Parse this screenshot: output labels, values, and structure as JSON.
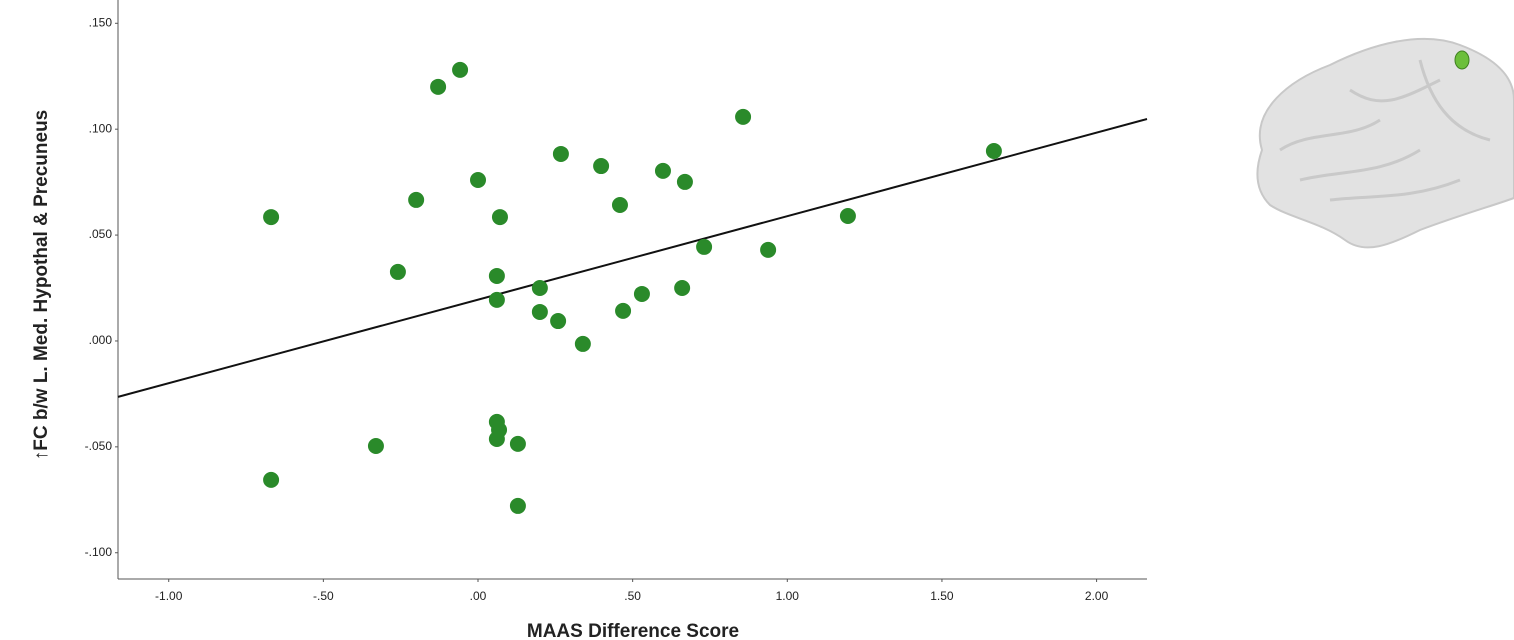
{
  "chart_data": {
    "type": "scatter",
    "x_label": "MAAS Difference Score",
    "y_label": "↑FC b/w L. Med. Hypothal & Precuneus",
    "color": "#2a8a2a",
    "label_color": "#3b8c2c",
    "x": [
      -0.669,
      -0.129,
      -0.058,
      -0.2,
      0.0,
      0.071,
      -0.259,
      0.061,
      0.061,
      0.2,
      0.2,
      0.259,
      0.339,
      0.268,
      0.398,
      0.459,
      0.469,
      0.53,
      0.598,
      0.669,
      0.66,
      0.731,
      0.857,
      0.938,
      1.196,
      1.668,
      -0.669,
      -0.33,
      0.061,
      0.068,
      0.061,
      0.129,
      0.129
    ],
    "values": [
      0.0585,
      0.12,
      0.128,
      0.0666,
      0.076,
      0.0585,
      0.0326,
      0.0307,
      0.0194,
      0.025,
      0.0137,
      0.0094,
      -0.0014,
      0.0883,
      0.0826,
      0.0642,
      0.0142,
      0.0222,
      0.0803,
      0.0751,
      0.025,
      0.0444,
      0.1058,
      0.043,
      0.059,
      0.0897,
      -0.0656,
      -0.0496,
      -0.0382,
      -0.042,
      -0.0463,
      -0.0486,
      -0.0779
    ],
    "fit_line": {
      "x": [
        -1.164,
        2.163
      ],
      "y": [
        -0.0264,
        0.1048
      ],
      "color": "#111111"
    },
    "xlim": [
      -1.164,
      2.163
    ],
    "ylim": [
      -0.1124,
      0.161
    ],
    "xticks": [
      {
        "value": -1,
        "label": "-1.00"
      },
      {
        "value": -0.5,
        "label": "-.50"
      },
      {
        "value": 0,
        "label": ".00"
      },
      {
        "value": 0.5,
        "label": ".50"
      },
      {
        "value": 1,
        "label": "1.00"
      },
      {
        "value": 1.5,
        "label": "1.50"
      },
      {
        "value": 2,
        "label": "2.00"
      }
    ],
    "yticks": [
      {
        "value": -0.1,
        "label": "-.100"
      },
      {
        "value": -0.05,
        "label": "-.050"
      },
      {
        "value": 0,
        "label": ".000"
      },
      {
        "value": 0.05,
        "label": ".050"
      },
      {
        "value": 0.1,
        "label": ".100"
      },
      {
        "value": 0.15,
        "label": ".150"
      }
    ],
    "grid": false
  }
}
